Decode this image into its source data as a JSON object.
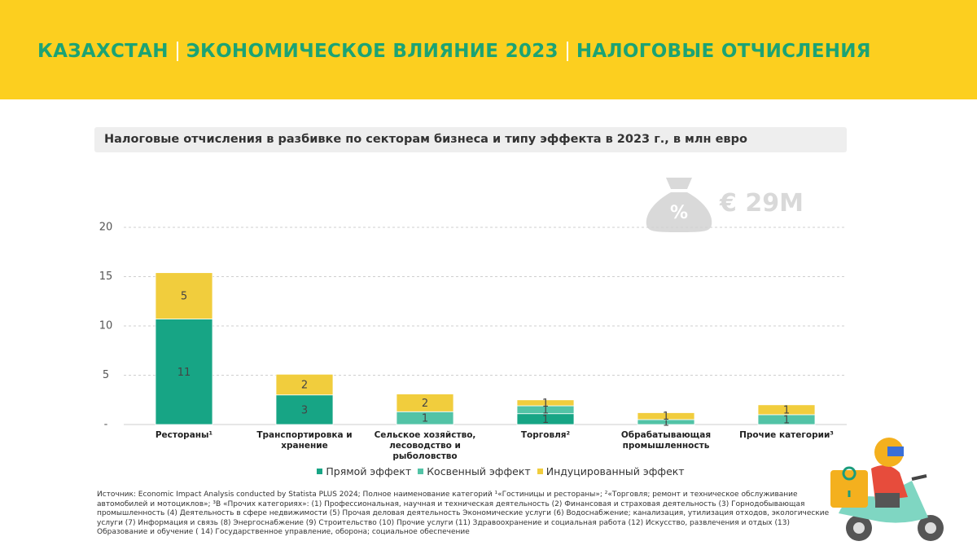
{
  "header": {
    "title_parts": [
      "КАЗАХСТАН",
      "ЭКОНОМИЧЕСКОЕ ВЛИЯНИЕ 2023",
      "НАЛОГОВЫЕ ОТЧИСЛЕНИЯ"
    ]
  },
  "chart_data": {
    "type": "bar",
    "stacked": true,
    "title": "Налоговые отчисления в разбивке по секторам бизнеса и типу эффекта в 2023 г., в млн евро",
    "annotation": "€ 29M",
    "categories": [
      "Рестораны¹",
      "Транспортировка и хранение",
      "Сельское хозяйство, лесоводство и рыболовство",
      "Торговля²",
      "Обрабатывающая промышленность",
      "Прочие категории³"
    ],
    "series": [
      {
        "name": "Прямой эффект",
        "color": "#17a585",
        "values": [
          10.7,
          3.0,
          0,
          1.1,
          0,
          0
        ],
        "value_labels": [
          "11",
          "3",
          null,
          "1",
          null,
          null
        ]
      },
      {
        "name": "Косвенный эффект",
        "color": "#52c3a6",
        "values": [
          0,
          0,
          1.3,
          0.8,
          0.5,
          1.0
        ],
        "value_labels": [
          null,
          null,
          "1",
          "1",
          "1",
          "1"
        ]
      },
      {
        "name": "Индуцированный эффект",
        "color": "#f1cd3d",
        "values": [
          4.7,
          2.1,
          1.8,
          0.6,
          0.7,
          1.0
        ],
        "value_labels": [
          "5",
          "2",
          "2",
          "1",
          "1",
          "1"
        ]
      }
    ],
    "ylim": [
      0,
      20
    ],
    "yticks": [
      {
        "value": 0,
        "label": "-"
      },
      5,
      10,
      15,
      20
    ],
    "grid": true,
    "legend": "bottom"
  },
  "footnote": "Источник: Economic Impact Analysis conducted by Statista PLUS 2024; Полное наименование категорий ¹«Гостиницы и рестораны»; ²«Торговля; ремонт и техническое обслуживание автомобилей и мотоциклов»; ³В «Прочих категориях»: (1) Профессиональная, научная и техническая деятельность (2) Финансовая и страховая деятельность (3) Горнодобывающая промышленность (4) Деятельность в сфере недвижимости (5) Прочая деловая деятельность Экономические услуги (6) Водоснабжение; канализация, утилизация отходов, экологические услуги (7) Информация и связь (8) Энергоснабжение (9) Строительство (10) Прочие услуги (11) Здравоохранение и социальная работа (12) Искусство, развлечения и отдых (13) Образование и обучение ( 14) Государственное управление, оборона; социальное обеспечение"
}
